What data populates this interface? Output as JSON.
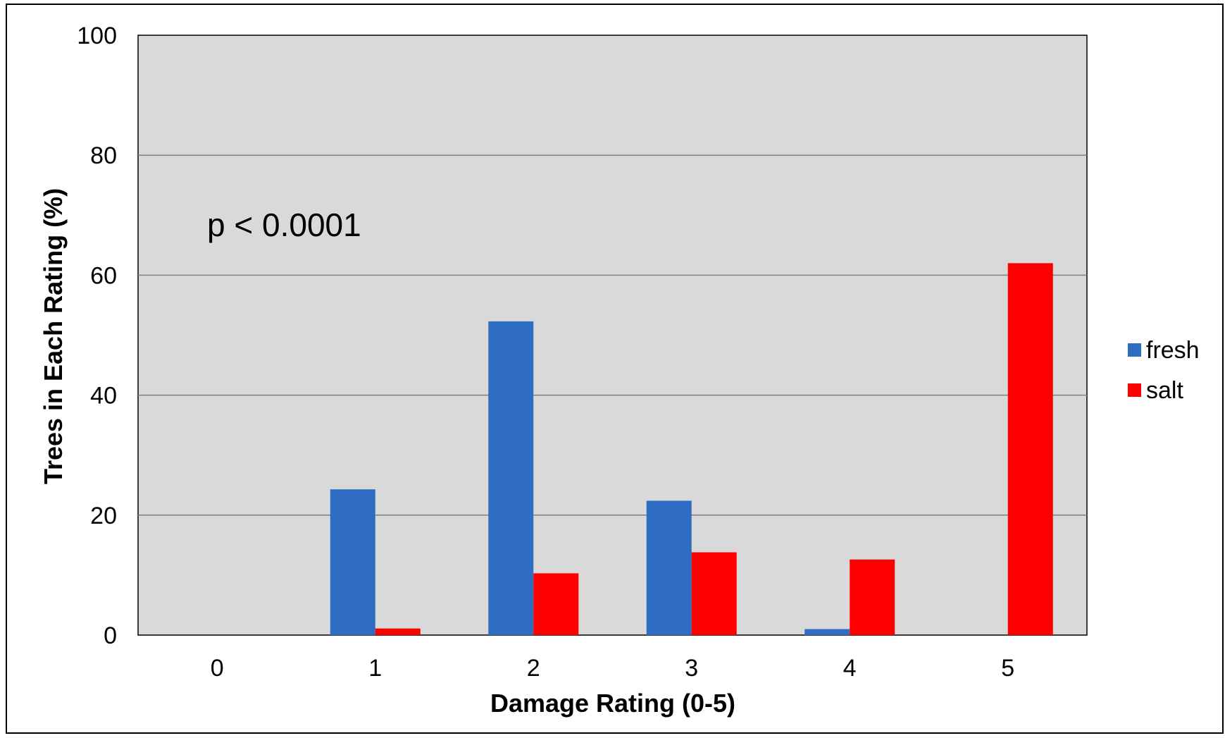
{
  "chart_data": {
    "type": "bar",
    "title": "",
    "xlabel": "Damage Rating (0-5)",
    "ylabel": "Trees in Each Rating (%)",
    "categories": [
      "0",
      "1",
      "2",
      "3",
      "4",
      "5"
    ],
    "ylim": [
      0,
      100
    ],
    "yticks": [
      "0",
      "20",
      "40",
      "60",
      "80",
      "100"
    ],
    "grid": true,
    "legend_position": "right",
    "annotation": "p < 0.0001",
    "plot_background": "#d9d9d9",
    "series": [
      {
        "name": "fresh",
        "color": "#2e6dc1",
        "values": [
          0,
          24.3,
          52.3,
          22.4,
          1.0,
          0
        ]
      },
      {
        "name": "salt",
        "color": "#ff0000",
        "values": [
          0,
          1.1,
          10.3,
          13.8,
          12.6,
          62.0
        ]
      }
    ]
  }
}
